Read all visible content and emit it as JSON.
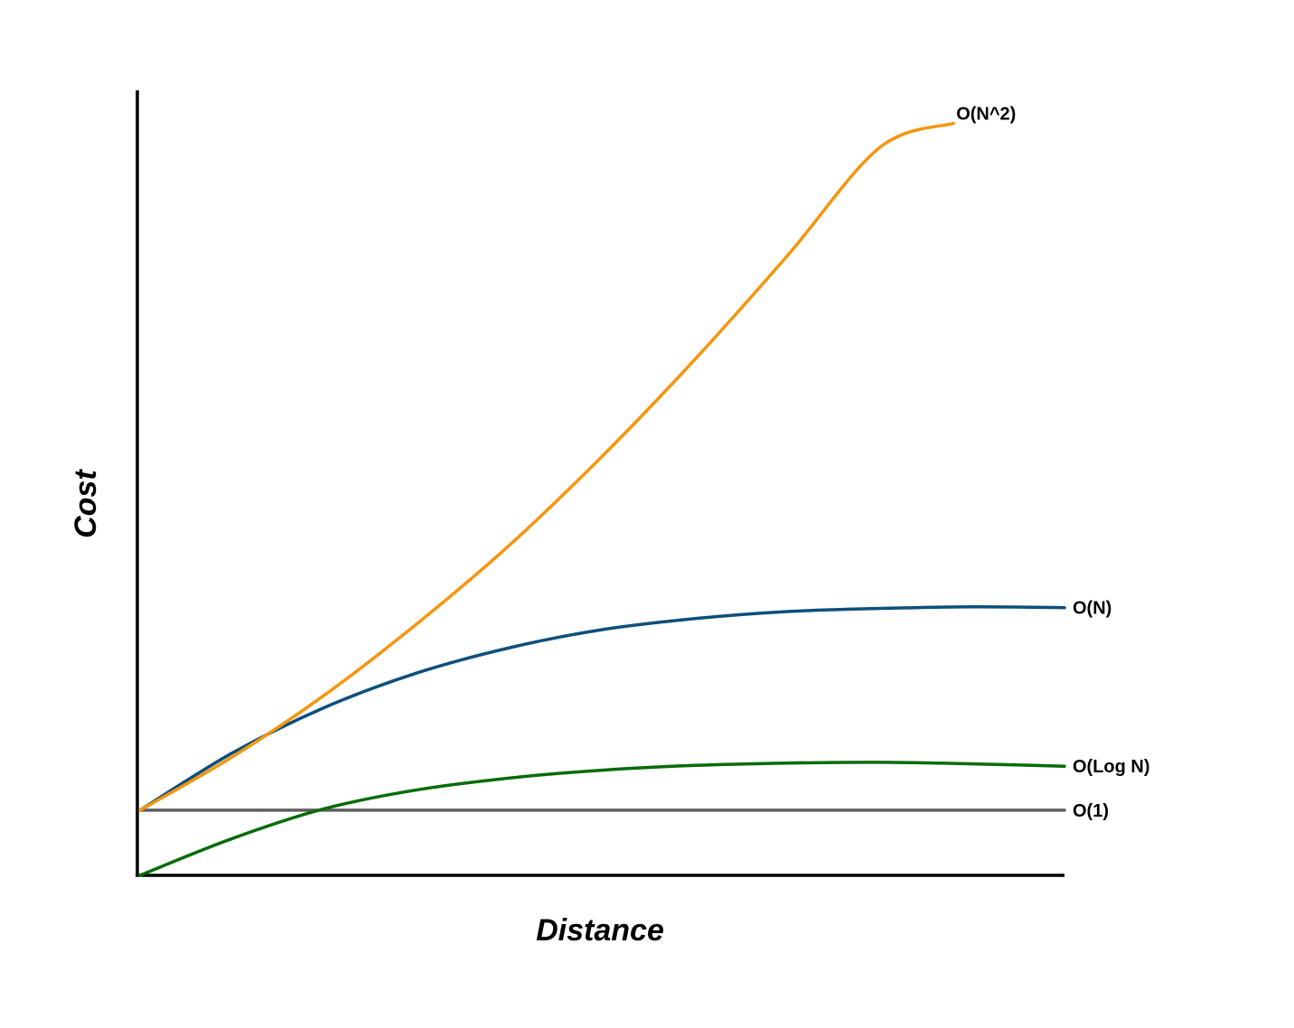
{
  "chart_data": {
    "type": "line",
    "title": "",
    "xlabel": "Distance",
    "ylabel": "Cost",
    "xlim": [
      0,
      1
    ],
    "ylim": [
      0,
      1
    ],
    "grid": false,
    "legend": "none",
    "series": [
      {
        "name": "O(N^2)",
        "color": "#f5950f",
        "x": [
          0.0,
          0.1,
          0.2,
          0.3,
          0.4,
          0.5,
          0.6,
          0.7,
          0.8,
          0.88
        ],
        "y": [
          0.083,
          0.151,
          0.23,
          0.321,
          0.421,
          0.534,
          0.657,
          0.789,
          0.927,
          0.958
        ]
      },
      {
        "name": "O(N)",
        "color": "#0d4f7c",
        "x": [
          0.0,
          0.1,
          0.2,
          0.3,
          0.4,
          0.5,
          0.6,
          0.7,
          0.8,
          0.9,
          1.0
        ],
        "y": [
          0.083,
          0.156,
          0.214,
          0.258,
          0.29,
          0.313,
          0.327,
          0.336,
          0.34,
          0.342,
          0.341
        ]
      },
      {
        "name": "O(Log N)",
        "color": "#076c07",
        "x": [
          0.0,
          0.1,
          0.2,
          0.3,
          0.4,
          0.5,
          0.6,
          0.7,
          0.8,
          0.9,
          1.0
        ],
        "y": [
          0.0,
          0.047,
          0.085,
          0.109,
          0.124,
          0.134,
          0.14,
          0.143,
          0.144,
          0.142,
          0.139
        ]
      },
      {
        "name": "O(1)",
        "color": "#5f5f5f",
        "x": [
          0.0,
          1.0
        ],
        "y": [
          0.083,
          0.083
        ]
      }
    ]
  }
}
